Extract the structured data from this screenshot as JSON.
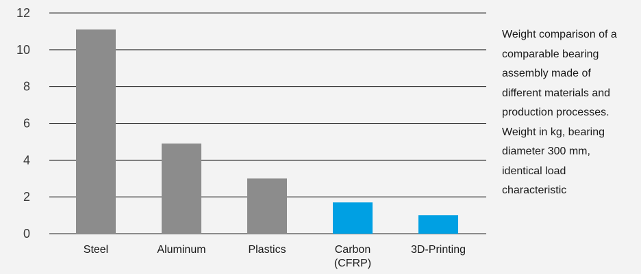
{
  "chart_data": {
    "type": "bar",
    "categories": [
      "Steel",
      "Aluminum",
      "Plastics",
      "Carbon\n(CFRP)",
      "3D-Printing"
    ],
    "values": [
      11.1,
      4.9,
      3.0,
      1.7,
      1.0
    ],
    "bar_colors": [
      "#8c8c8c",
      "#8c8c8c",
      "#8c8c8c",
      "#00a0e3",
      "#00a0e3"
    ],
    "yticks": [
      0,
      2,
      4,
      6,
      8,
      10,
      12
    ],
    "ylim": [
      0,
      12
    ],
    "grid": true,
    "title": "",
    "xlabel": "",
    "ylabel": ""
  },
  "caption": "Weight comparison of a\ncomparable bearing\nassembly made of\ndifferent materials and\nproduction processes.\nWeight in kg, bearing\ndiameter 300 mm,\nidentical load\ncharacteristic"
}
